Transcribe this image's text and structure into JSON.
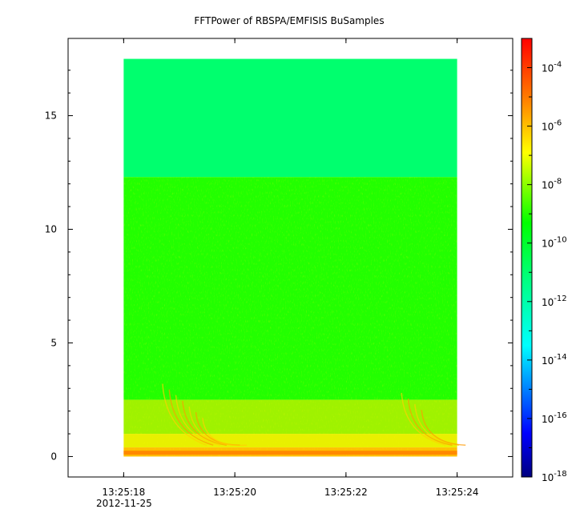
{
  "chart_data": {
    "type": "heatmap",
    "title": "FFTPower of RBSPA/EMFISIS  BuSamples",
    "xlabel": "",
    "ylabel": "",
    "x_date": "2012-11-25",
    "x_ticks": [
      "13:25:18",
      "13:25:20",
      "13:25:22",
      "13:25:24"
    ],
    "x_range": [
      "13:25:17.0",
      "13:25:25.0"
    ],
    "data_x_range": [
      "13:25:18.0",
      "13:25:24.0"
    ],
    "y_ticks": [
      0,
      5,
      10,
      15
    ],
    "ylim": [
      -0.9,
      18.4
    ],
    "data_y_range": [
      0,
      17.5
    ],
    "colorbar": {
      "scale": "log",
      "range": [
        1e-18,
        0.001
      ],
      "ticks": [
        {
          "base": "10",
          "exp": "-4"
        },
        {
          "base": "10",
          "exp": "-6"
        },
        {
          "base": "10",
          "exp": "-8"
        },
        {
          "base": "10",
          "exp": "-10"
        },
        {
          "base": "10",
          "exp": "-12"
        },
        {
          "base": "10",
          "exp": "-14"
        },
        {
          "base": "10",
          "exp": "-16"
        },
        {
          "base": "10",
          "exp": "-18"
        }
      ],
      "colormap": [
        "#00007f",
        "#0000ff",
        "#0080ff",
        "#00ffff",
        "#00ff80",
        "#00ff00",
        "#80ff00",
        "#ffff00",
        "#ff8000",
        "#ff0000"
      ]
    },
    "regions": [
      {
        "y": [
          12.3,
          17.5
        ],
        "level": "1e-12",
        "color": "#00ff6e"
      },
      {
        "y": [
          2.5,
          12.3
        ],
        "level": "1e-10",
        "color": "#22ff00"
      },
      {
        "y": [
          1.0,
          2.5
        ],
        "level": "1e-9",
        "color": "#9ff200"
      },
      {
        "y": [
          0.4,
          1.0
        ],
        "level": "1e-8",
        "color": "#e8f000"
      },
      {
        "y": [
          0,
          0.4
        ],
        "level": "1e-7",
        "color": "#ffbf00"
      }
    ]
  }
}
